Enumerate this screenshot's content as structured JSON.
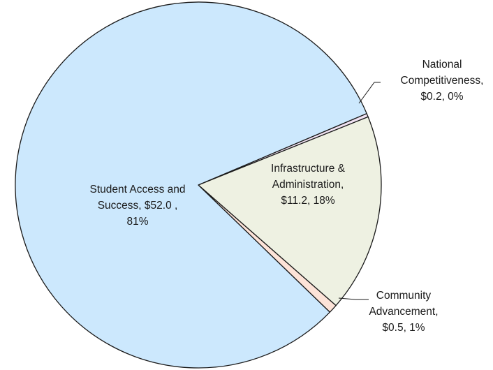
{
  "chart_data": {
    "type": "pie",
    "title": "",
    "slices": [
      {
        "category": "National Competitiveness",
        "value": 0.2,
        "percent": "0%",
        "color": "#f0e2f2",
        "label_lines": [
          "National",
          "Competitiveness,",
          "$0.2, 0%"
        ]
      },
      {
        "category": "Infrastructure & Administration",
        "value": 11.2,
        "percent": "18%",
        "color": "#eef1e2",
        "label_lines": [
          "Infrastructure &",
          "Administration,",
          "$11.2, 18%"
        ]
      },
      {
        "category": "Community Advancement",
        "value": 0.5,
        "percent": "1%",
        "color": "#fde3d8",
        "label_lines": [
          "Community",
          "Advancement,",
          "$0.5, 1%"
        ]
      },
      {
        "category": "Student Access and Success",
        "value": 52.0,
        "percent": "81%",
        "color": "#cce8fd",
        "label_lines": [
          "Student Access and",
          "Success,  $52.0 ,",
          "81%"
        ]
      }
    ],
    "legend": "none"
  }
}
